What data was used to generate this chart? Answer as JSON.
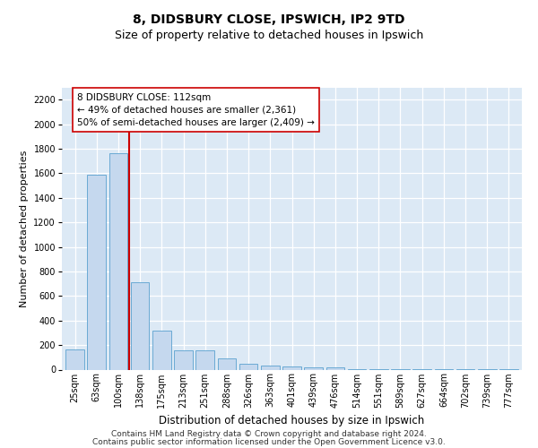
{
  "title1": "8, DIDSBURY CLOSE, IPSWICH, IP2 9TD",
  "title2": "Size of property relative to detached houses in Ipswich",
  "xlabel": "Distribution of detached houses by size in Ipswich",
  "ylabel": "Number of detached properties",
  "categories": [
    "25sqm",
    "63sqm",
    "100sqm",
    "138sqm",
    "175sqm",
    "213sqm",
    "251sqm",
    "288sqm",
    "326sqm",
    "363sqm",
    "401sqm",
    "439sqm",
    "476sqm",
    "514sqm",
    "551sqm",
    "589sqm",
    "627sqm",
    "664sqm",
    "702sqm",
    "739sqm",
    "777sqm"
  ],
  "values": [
    165,
    1590,
    1760,
    710,
    315,
    160,
    155,
    90,
    50,
    30,
    22,
    20,
    18,
    5,
    3,
    3,
    2,
    1,
    1,
    1,
    1
  ],
  "bar_color": "#c5d8ee",
  "bar_edge_color": "#6aaad4",
  "vline_x": 2.5,
  "vline_color": "#cc0000",
  "annotation_text": "8 DIDSBURY CLOSE: 112sqm\n← 49% of detached houses are smaller (2,361)\n50% of semi-detached houses are larger (2,409) →",
  "annotation_box_color": "#ffffff",
  "annotation_box_edge": "#cc0000",
  "ylim": [
    0,
    2300
  ],
  "yticks": [
    0,
    200,
    400,
    600,
    800,
    1000,
    1200,
    1400,
    1600,
    1800,
    2000,
    2200
  ],
  "plot_bg_color": "#dce9f5",
  "footer1": "Contains HM Land Registry data © Crown copyright and database right 2024.",
  "footer2": "Contains public sector information licensed under the Open Government Licence v3.0.",
  "title1_fontsize": 10,
  "title2_fontsize": 9,
  "xlabel_fontsize": 8.5,
  "ylabel_fontsize": 8,
  "tick_fontsize": 7,
  "footer_fontsize": 6.5,
  "annot_fontsize": 7.5
}
